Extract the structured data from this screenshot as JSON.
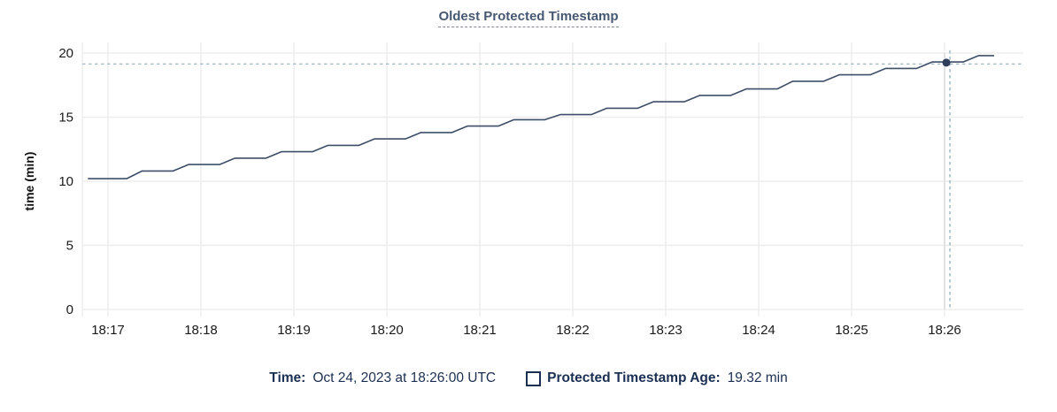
{
  "title": "Oldest Protected Timestamp",
  "y_axis_label": "time (min)",
  "footer": {
    "time_label": "Time:",
    "time_value": "Oct 24, 2023 at 18:26:00 UTC",
    "series_label": "Protected Timestamp Age:",
    "series_value": "19.32 min"
  },
  "colors": {
    "title": "#475872",
    "line": "#3e4e69",
    "hover_dot": "#2e3d59",
    "grid": "#ededed",
    "axis_text": "#1a1a1a",
    "crosshair_horizontal": "#9fb9c4",
    "crosshair_vertical_solid": "#d8d8d8",
    "crosshair_vertical_dashed": "#8fb0bd",
    "footer_text": "#1b2f52"
  },
  "chart_data": {
    "type": "line",
    "title": "Oldest Protected Timestamp",
    "xlabel": "",
    "ylabel": "time (min)",
    "ylim": [
      0,
      20
    ],
    "y_ticks": [
      0,
      5,
      10,
      15,
      20
    ],
    "x_ticks": [
      "18:17",
      "18:18",
      "18:19",
      "18:20",
      "18:21",
      "18:22",
      "18:23",
      "18:24",
      "18:25",
      "18:26"
    ],
    "x_tick_interval_seconds": 60,
    "grid": true,
    "legend_position": "bottom",
    "series": [
      {
        "name": "Protected Timestamp Age",
        "unit": "min",
        "points_format": "[seconds since 18:17:00, minutes]",
        "points": [
          [
            -13,
            10.2
          ],
          [
            12,
            10.2
          ],
          [
            22,
            10.8
          ],
          [
            42,
            10.8
          ],
          [
            52,
            11.3
          ],
          [
            72,
            11.3
          ],
          [
            82,
            11.8
          ],
          [
            102,
            11.8
          ],
          [
            112,
            12.3
          ],
          [
            132,
            12.3
          ],
          [
            142,
            12.8
          ],
          [
            162,
            12.8
          ],
          [
            172,
            13.3
          ],
          [
            192,
            13.3
          ],
          [
            202,
            13.8
          ],
          [
            222,
            13.8
          ],
          [
            232,
            14.3
          ],
          [
            252,
            14.3
          ],
          [
            262,
            14.8
          ],
          [
            282,
            14.8
          ],
          [
            292,
            15.2
          ],
          [
            312,
            15.2
          ],
          [
            322,
            15.7
          ],
          [
            342,
            15.7
          ],
          [
            352,
            16.2
          ],
          [
            372,
            16.2
          ],
          [
            382,
            16.7
          ],
          [
            402,
            16.7
          ],
          [
            412,
            17.2
          ],
          [
            432,
            17.2
          ],
          [
            442,
            17.8
          ],
          [
            462,
            17.8
          ],
          [
            472,
            18.3
          ],
          [
            492,
            18.3
          ],
          [
            502,
            18.8
          ],
          [
            522,
            18.8
          ],
          [
            532,
            19.3
          ],
          [
            552,
            19.3
          ],
          [
            562,
            19.8
          ],
          [
            572,
            19.8
          ]
        ]
      }
    ],
    "hover": {
      "t": 540,
      "time": "18:26:00",
      "value": 19.32,
      "value_label": "19.32 min"
    }
  }
}
